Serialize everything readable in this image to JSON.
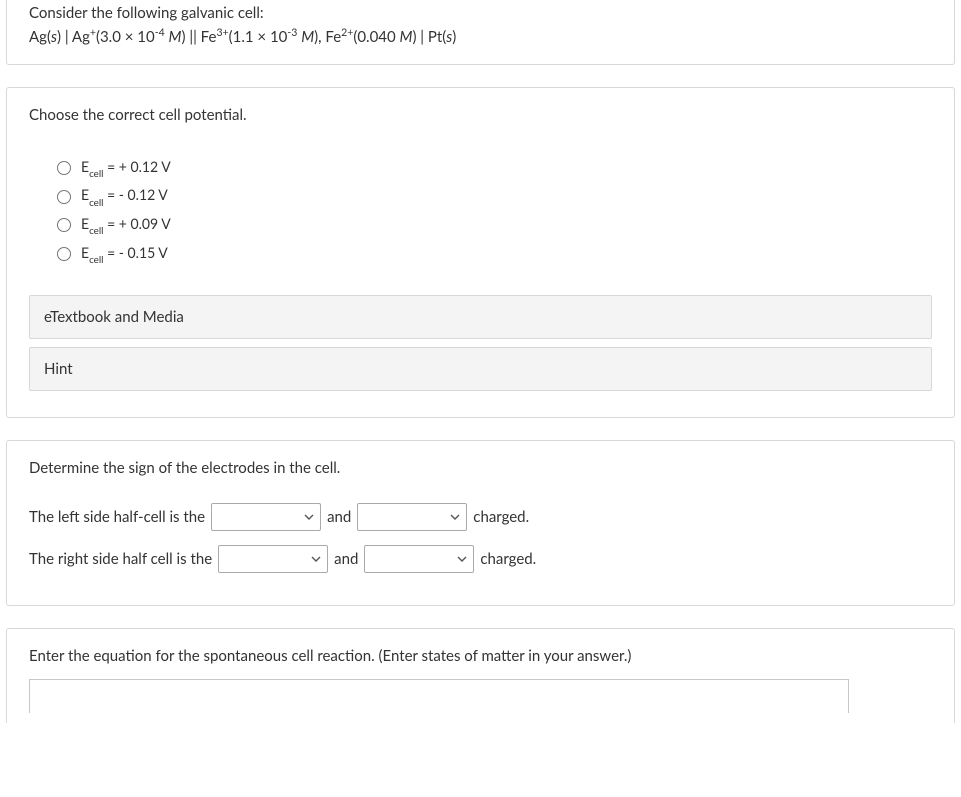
{
  "intro": {
    "line1_html": "Consider the following galvanic cell:",
    "line2_html": "Ag(<span class='italic'>s</span>) | Ag<span class='sup'>+</span>(3.0 × 10<span class='sup'>-4</span> <span class='italic'>M</span>) || Fe<span class='sup'>3+</span>(1.1 × 10<span class='sup'>-3</span> <span class='italic'>M</span>), Fe<span class='sup'>2+</span>(0.040 <span class='italic'>M</span>) | Pt(<span class='italic'>s</span>)"
  },
  "q1": {
    "prompt": "Choose the correct cell potential.",
    "options": [
      "E<span class='sub'>cell</span> = + 0.12 V",
      "E<span class='sub'>cell</span> = - 0.12 V",
      "E<span class='sub'>cell</span> = + 0.09 V",
      "E<span class='sub'>cell</span> = - 0.15 V"
    ],
    "accordion_etextbook": "eTextbook and Media",
    "accordion_hint": "Hint"
  },
  "q2": {
    "prompt": "Determine the sign of the electrodes in the cell.",
    "row1_pre": "The left side half-cell is the",
    "row1_mid": "and",
    "row1_post": "charged.",
    "row2_pre": "The right side half cell is the",
    "row2_mid": "and",
    "row2_post": "charged.",
    "select_placeholder": ""
  },
  "q3": {
    "prompt": "Enter the equation for the spontaneous cell reaction. (Enter states of matter in your answer.)"
  }
}
